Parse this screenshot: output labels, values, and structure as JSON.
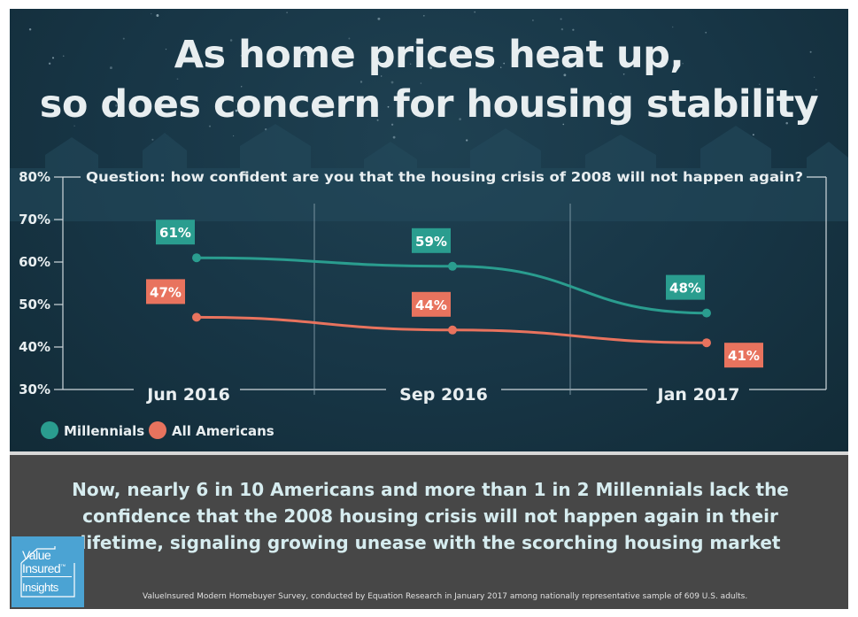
{
  "title_lines": [
    "As home prices heat up,",
    "so does concern for housing stability"
  ],
  "colors": {
    "millennials": "#2a9d8f",
    "all_americans": "#e8735e",
    "background": "#16313e",
    "text_light": "#e8eef0"
  },
  "chart_data": {
    "type": "line",
    "title": "Question: how confident are you that the housing crisis of 2008 will not happen again?",
    "categories": [
      "Jun 2016",
      "Sep 2016",
      "Jan 2017"
    ],
    "series": [
      {
        "name": "Millennials",
        "values": [
          61,
          59,
          48
        ],
        "labels": [
          "61%",
          "59%",
          "48%"
        ],
        "color": "#2a9d8f"
      },
      {
        "name": "All Americans",
        "values": [
          47,
          44,
          41
        ],
        "labels": [
          "47%",
          "44%",
          "41%"
        ],
        "color": "#e8735e"
      }
    ],
    "ylim": [
      30,
      80
    ],
    "yticks": [
      30,
      40,
      50,
      60,
      70,
      80
    ],
    "ytick_labels": [
      "30%",
      "40%",
      "50%",
      "60%",
      "70%",
      "80%"
    ],
    "grid": "vertical separators between periods",
    "legend": "bottom-left"
  },
  "summary_lines": [
    "Now, nearly 6 in 10 Americans and more than 1 in 2 Millennials lack the",
    "confidence that the 2008 housing crisis will not happen again in their",
    "lifetime, signaling growing unease with the scorching housing market"
  ],
  "footnote": "ValueInsured Modern Homebuyer Survey, conducted by Equation Research in January 2017 among nationally representative sample of 609 U.S. adults.",
  "logo": {
    "line1": "Value",
    "line2": "Insured",
    "tm": "™",
    "line3": "Insights"
  }
}
